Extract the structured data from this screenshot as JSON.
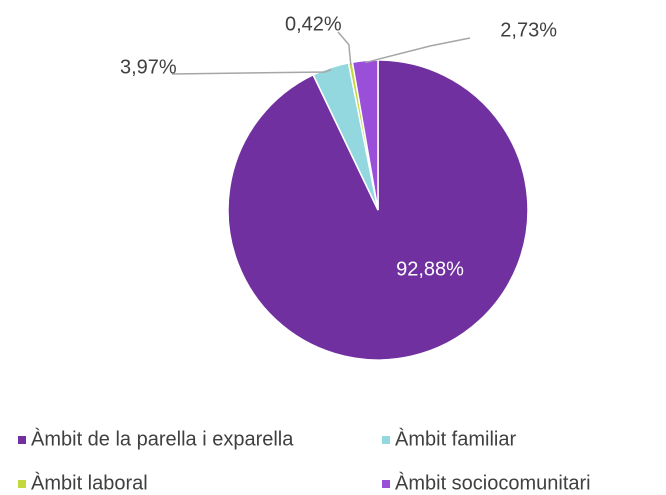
{
  "chart_data": {
    "type": "pie",
    "categories": [
      "Àmbit de la parella i exparella",
      "Àmbit familiar",
      "Àmbit laboral",
      "Àmbit sociocomunitari"
    ],
    "values": [
      92.88,
      3.97,
      0.42,
      2.73
    ],
    "value_labels": [
      "92,88%",
      "3,97%",
      "0,42%",
      "2,73%"
    ],
    "colors": [
      "#7030a0",
      "#92d8de",
      "#c3d83c",
      "#9a4fd8"
    ]
  }
}
